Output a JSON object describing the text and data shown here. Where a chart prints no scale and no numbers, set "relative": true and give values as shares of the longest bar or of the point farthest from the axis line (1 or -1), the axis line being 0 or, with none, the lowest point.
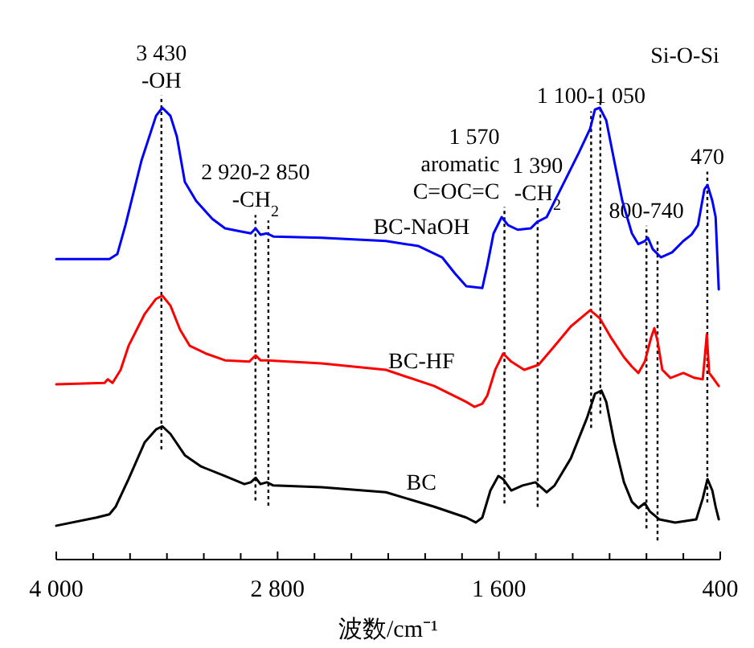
{
  "chart_data": {
    "type": "line",
    "relative": true,
    "xlabel": "波数/cm⁻¹",
    "xlim": [
      4000,
      400
    ],
    "xticks": [
      {
        "value": 4000,
        "label": "4 000"
      },
      {
        "value": 3800,
        "label": null
      },
      {
        "value": 3600,
        "label": null
      },
      {
        "value": 3400,
        "label": null
      },
      {
        "value": 3200,
        "label": null
      },
      {
        "value": 3000,
        "label": null
      },
      {
        "value": 2800,
        "label": "2 800"
      },
      {
        "value": 2600,
        "label": null
      },
      {
        "value": 2400,
        "label": null
      },
      {
        "value": 2200,
        "label": null
      },
      {
        "value": 2000,
        "label": null
      },
      {
        "value": 1800,
        "label": null
      },
      {
        "value": 1600,
        "label": "1 600"
      },
      {
        "value": 1400,
        "label": null
      },
      {
        "value": 1200,
        "label": null
      },
      {
        "value": 1000,
        "label": null
      },
      {
        "value": 800,
        "label": null
      },
      {
        "value": 600,
        "label": null
      },
      {
        "value": 400,
        "label": "400"
      }
    ],
    "series": [
      {
        "name": "BC-NaOH",
        "color": "#0000ff",
        "x": [
          4000,
          3712,
          3669,
          3625,
          3538,
          3459,
          3425,
          3381,
          3346,
          3303,
          3242,
          3154,
          3085,
          2997,
          2945,
          2919,
          2893,
          2858,
          2823,
          2562,
          2213,
          2038,
          1908,
          1838,
          1777,
          1690,
          1663,
          1629,
          1585,
          1550,
          1498,
          1428,
          1393,
          1341,
          1254,
          1167,
          1105,
          1079,
          1053,
          1018,
          975,
          931,
          879,
          844,
          809,
          792,
          766,
          722,
          661,
          600,
          556,
          521,
          486,
          469,
          443,
          425,
          408
        ],
        "values": [
          0.665,
          0.665,
          0.676,
          0.74,
          0.883,
          0.982,
          1.0,
          0.982,
          0.936,
          0.836,
          0.794,
          0.754,
          0.733,
          0.726,
          0.722,
          0.733,
          0.719,
          0.722,
          0.715,
          0.712,
          0.705,
          0.694,
          0.669,
          0.633,
          0.605,
          0.601,
          0.651,
          0.722,
          0.758,
          0.74,
          0.73,
          0.733,
          0.747,
          0.758,
          0.829,
          0.9,
          0.954,
          0.996,
          1.0,
          0.972,
          0.883,
          0.794,
          0.722,
          0.698,
          0.705,
          0.712,
          0.687,
          0.669,
          0.68,
          0.705,
          0.719,
          0.74,
          0.819,
          0.829,
          0.794,
          0.758,
          0.598
        ]
      },
      {
        "name": "BC-HF",
        "color": "#ff0000",
        "x": [
          4000,
          3738,
          3721,
          3695,
          3651,
          3608,
          3520,
          3459,
          3425,
          3381,
          3329,
          3276,
          3189,
          3085,
          2954,
          2919,
          2893,
          2858,
          2562,
          2213,
          1951,
          1777,
          1733,
          1690,
          1663,
          1620,
          1577,
          1533,
          1463,
          1385,
          1298,
          1210,
          1105,
          1053,
          992,
          922,
          879,
          844,
          809,
          775,
          757,
          740,
          714,
          670,
          600,
          539,
          495,
          486,
          473,
          460,
          434,
          408
        ],
        "values": [
          0.388,
          0.391,
          0.399,
          0.391,
          0.42,
          0.473,
          0.544,
          0.577,
          0.584,
          0.562,
          0.509,
          0.473,
          0.456,
          0.441,
          0.438,
          0.452,
          0.441,
          0.441,
          0.434,
          0.42,
          0.384,
          0.349,
          0.338,
          0.345,
          0.363,
          0.42,
          0.456,
          0.438,
          0.42,
          0.431,
          0.473,
          0.516,
          0.552,
          0.534,
          0.491,
          0.448,
          0.427,
          0.413,
          0.438,
          0.491,
          0.512,
          0.484,
          0.42,
          0.402,
          0.413,
          0.402,
          0.399,
          0.438,
          0.498,
          0.413,
          0.399,
          0.384
        ]
      },
      {
        "name": "BC",
        "color": "#000000",
        "x": [
          4000,
          3782,
          3712,
          3678,
          3608,
          3520,
          3459,
          3425,
          3381,
          3303,
          3215,
          3085,
          2980,
          2945,
          2919,
          2893,
          2858,
          2823,
          2562,
          2213,
          1951,
          1777,
          1725,
          1690,
          1646,
          1603,
          1577,
          1533,
          1472,
          1402,
          1341,
          1298,
          1210,
          1123,
          1079,
          1044,
          1018,
          975,
          922,
          879,
          844,
          809,
          783,
          731,
          644,
          530,
          495,
          469,
          443,
          425,
          408
        ],
        "values": [
          0.075,
          0.093,
          0.1,
          0.117,
          0.178,
          0.26,
          0.288,
          0.295,
          0.278,
          0.231,
          0.206,
          0.185,
          0.167,
          0.171,
          0.181,
          0.167,
          0.171,
          0.164,
          0.16,
          0.149,
          0.117,
          0.093,
          0.082,
          0.093,
          0.153,
          0.185,
          0.178,
          0.153,
          0.164,
          0.171,
          0.149,
          0.164,
          0.224,
          0.313,
          0.367,
          0.374,
          0.349,
          0.26,
          0.171,
          0.128,
          0.114,
          0.125,
          0.107,
          0.089,
          0.082,
          0.089,
          0.135,
          0.178,
          0.153,
          0.117,
          0.089
        ]
      }
    ],
    "ref_lines": [
      {
        "axis": "x",
        "value": 3430,
        "line_style": "dotted",
        "label": "3 430\n-OH"
      },
      {
        "axis": "x",
        "value": 2920,
        "line_style": "dotted",
        "label": "2 920-2 850\n-CH$_{2}$"
      },
      {
        "axis": "x",
        "value": 2850,
        "line_style": "dotted"
      },
      {
        "axis": "x",
        "value": 1570,
        "line_style": "dotted",
        "label": "1 570\naromatic\nC=OC=C"
      },
      {
        "axis": "x",
        "value": 1390,
        "line_style": "dotted",
        "label": "1 390\n-CH$_{2}$"
      },
      {
        "axis": "x",
        "value": 1100,
        "line_style": "dotted",
        "label": "1 100-1 050"
      },
      {
        "axis": "x",
        "value": 1050,
        "line_style": "dotted"
      },
      {
        "axis": "x",
        "value": 800,
        "line_style": "dotted",
        "label": "800-740"
      },
      {
        "axis": "x",
        "value": 740,
        "line_style": "dotted"
      },
      {
        "axis": "x",
        "value": 470,
        "line_style": "dotted",
        "label": "470"
      }
    ],
    "annotations": [
      "Si-O-Si"
    ]
  }
}
